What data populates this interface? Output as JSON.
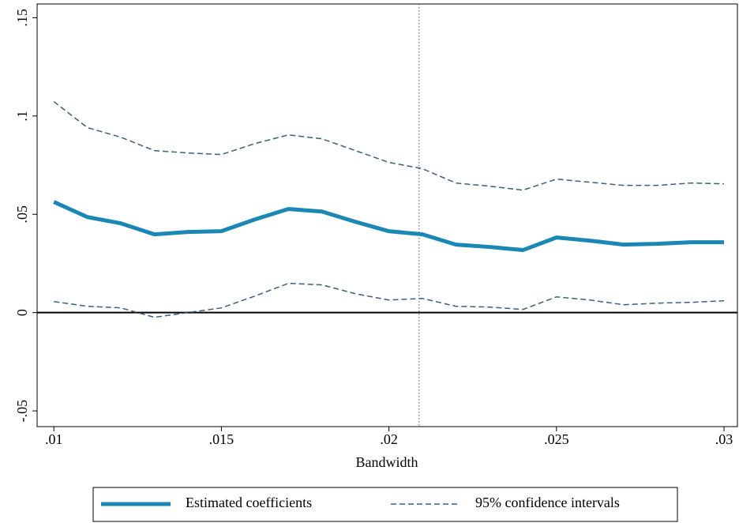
{
  "chart_data": {
    "type": "line",
    "x_label": "Bandwidth",
    "x": [
      0.01,
      0.011,
      0.012,
      0.013,
      0.014,
      0.015,
      0.016,
      0.017,
      0.018,
      0.019,
      0.02,
      0.021,
      0.022,
      0.023,
      0.024,
      0.025,
      0.026,
      0.027,
      0.028,
      0.029,
      0.03
    ],
    "series": [
      {
        "name": "Estimated coefficients",
        "color": "#1a87b5",
        "style": "solid",
        "values": [
          0.0563,
          0.0486,
          0.0454,
          0.0398,
          0.041,
          0.0414,
          0.0474,
          0.0527,
          0.0514,
          0.0462,
          0.0414,
          0.0398,
          0.0346,
          0.0334,
          0.0318,
          0.0382,
          0.0366,
          0.0346,
          0.035,
          0.0358,
          0.0358
        ]
      },
      {
        "name": "95% confidence intervals",
        "color": "#3a5f80",
        "style": "dashed",
        "upper": [
          0.1073,
          0.0941,
          0.0892,
          0.0824,
          0.0812,
          0.0804,
          0.086,
          0.0904,
          0.0884,
          0.0824,
          0.0764,
          0.0732,
          0.0659,
          0.0643,
          0.0623,
          0.0679,
          0.0663,
          0.0647,
          0.0647,
          0.0659,
          0.0655
        ],
        "lower": [
          0.0056,
          0.0032,
          0.0024,
          -0.0024,
          0.0,
          0.0024,
          0.0084,
          0.0149,
          0.0141,
          0.0096,
          0.0064,
          0.0072,
          0.0032,
          0.0028,
          0.0016,
          0.008,
          0.0064,
          0.004,
          0.0048,
          0.0052,
          0.006
        ]
      }
    ],
    "xlim": [
      0.0095,
      0.0304
    ],
    "ylim": [
      -0.058,
      0.157
    ],
    "xticks": [
      {
        "value": 0.01,
        "label": ".01"
      },
      {
        "value": 0.015,
        "label": ".015"
      },
      {
        "value": 0.02,
        "label": ".02"
      },
      {
        "value": 0.025,
        "label": ".025"
      },
      {
        "value": 0.03,
        "label": ".03"
      }
    ],
    "yticks": [
      {
        "value": -0.05,
        "label": "-.05"
      },
      0,
      {
        "value": 0.05,
        "label": ".05"
      },
      {
        "value": 0.1,
        "label": ".1"
      },
      {
        "value": 0.15,
        "label": ".15"
      }
    ],
    "hline": 0,
    "vline": 0.0209,
    "legend": "bottom"
  }
}
